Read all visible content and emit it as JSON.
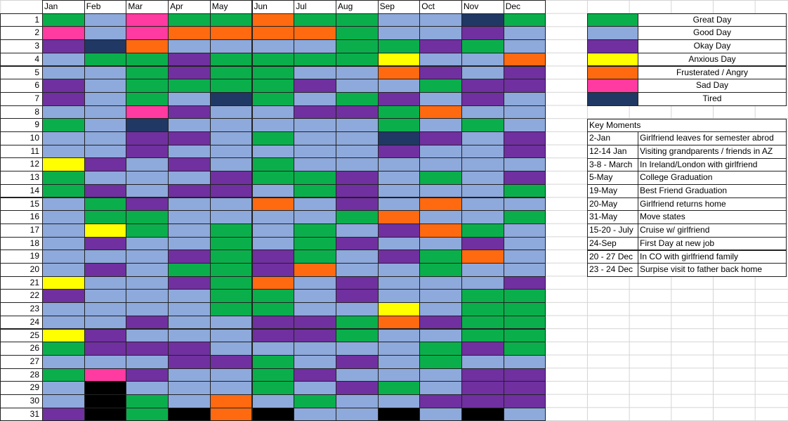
{
  "columns": [
    "Jan",
    "Feb",
    "Mar",
    "Apr",
    "May",
    "Jun",
    "Jul",
    "Aug",
    "Sep",
    "Oct",
    "Nov",
    "Dec"
  ],
  "rows": [
    1,
    2,
    3,
    4,
    5,
    6,
    7,
    8,
    9,
    10,
    11,
    12,
    13,
    14,
    15,
    16,
    17,
    18,
    19,
    20,
    21,
    22,
    23,
    24,
    25,
    26,
    27,
    28,
    29,
    30,
    31
  ],
  "moods": [
    {
      "label": "Great Day",
      "color": "#0aaf4c"
    },
    {
      "label": "Good Day",
      "color": "#8ea9db"
    },
    {
      "label": "Okay Day",
      "color": "#7030a0"
    },
    {
      "label": "Anxious Day",
      "color": "#ffff00"
    },
    {
      "label": "Frusterated / Angry",
      "color": "#ff6a10"
    },
    {
      "label": "Sad Day",
      "color": "#ff3aa0"
    },
    {
      "label": "Tired",
      "color": "#203864"
    }
  ],
  "grid": [
    [
      0,
      1,
      5,
      0,
      0,
      4,
      0,
      0,
      1,
      1,
      6,
      0
    ],
    [
      5,
      1,
      5,
      4,
      4,
      4,
      4,
      0,
      1,
      1,
      2,
      1
    ],
    [
      2,
      6,
      4,
      1,
      1,
      1,
      1,
      0,
      0,
      2,
      0,
      1
    ],
    [
      1,
      0,
      0,
      2,
      0,
      0,
      0,
      0,
      3,
      1,
      1,
      4
    ],
    [
      1,
      1,
      0,
      2,
      0,
      0,
      1,
      1,
      4,
      2,
      1,
      2
    ],
    [
      2,
      1,
      0,
      0,
      0,
      0,
      2,
      1,
      1,
      0,
      2,
      2
    ],
    [
      2,
      1,
      0,
      1,
      6,
      0,
      1,
      0,
      2,
      1,
      2,
      1
    ],
    [
      1,
      1,
      5,
      2,
      1,
      1,
      2,
      2,
      0,
      4,
      1,
      1
    ],
    [
      0,
      1,
      6,
      1,
      1,
      1,
      1,
      1,
      0,
      1,
      0,
      1
    ],
    [
      1,
      1,
      2,
      2,
      1,
      0,
      1,
      1,
      6,
      2,
      1,
      2
    ],
    [
      1,
      1,
      2,
      1,
      1,
      1,
      1,
      1,
      2,
      1,
      1,
      2
    ],
    [
      3,
      2,
      1,
      2,
      1,
      0,
      1,
      1,
      1,
      1,
      1,
      1
    ],
    [
      0,
      1,
      1,
      1,
      2,
      0,
      0,
      2,
      1,
      0,
      1,
      2
    ],
    [
      0,
      2,
      1,
      2,
      2,
      1,
      0,
      2,
      1,
      1,
      1,
      0
    ],
    [
      1,
      0,
      2,
      1,
      1,
      4,
      1,
      2,
      1,
      4,
      1,
      1
    ],
    [
      1,
      0,
      0,
      1,
      1,
      1,
      1,
      0,
      4,
      1,
      1,
      0
    ],
    [
      1,
      3,
      0,
      1,
      0,
      1,
      0,
      1,
      2,
      4,
      0,
      1
    ],
    [
      1,
      2,
      1,
      1,
      0,
      1,
      0,
      2,
      1,
      1,
      2,
      1
    ],
    [
      1,
      1,
      1,
      2,
      0,
      2,
      0,
      1,
      2,
      0,
      4,
      1
    ],
    [
      1,
      2,
      1,
      0,
      0,
      2,
      4,
      1,
      1,
      0,
      1,
      1
    ],
    [
      3,
      1,
      1,
      2,
      0,
      4,
      1,
      2,
      1,
      1,
      1,
      2
    ],
    [
      2,
      1,
      1,
      1,
      0,
      0,
      1,
      2,
      1,
      1,
      0,
      0
    ],
    [
      1,
      1,
      1,
      1,
      0,
      0,
      1,
      1,
      3,
      1,
      0,
      0
    ],
    [
      1,
      1,
      2,
      1,
      1,
      2,
      2,
      0,
      4,
      2,
      0,
      0
    ],
    [
      3,
      2,
      1,
      1,
      1,
      2,
      2,
      0,
      1,
      1,
      0,
      0
    ],
    [
      0,
      2,
      2,
      2,
      1,
      1,
      1,
      1,
      1,
      0,
      2,
      0
    ],
    [
      1,
      1,
      1,
      2,
      2,
      0,
      1,
      2,
      1,
      0,
      1,
      1
    ],
    [
      0,
      5,
      2,
      1,
      1,
      0,
      2,
      1,
      1,
      1,
      2,
      2
    ],
    [
      1,
      null,
      1,
      1,
      1,
      0,
      1,
      2,
      0,
      1,
      2,
      2
    ],
    [
      1,
      null,
      0,
      1,
      4,
      1,
      0,
      1,
      1,
      2,
      2,
      2
    ],
    [
      2,
      null,
      0,
      null,
      4,
      null,
      1,
      1,
      null,
      1,
      null,
      1
    ]
  ],
  "key_moments": {
    "title": "Key Moments",
    "rows": [
      [
        "2-Jan",
        "Girlfriend leaves for semester abrod"
      ],
      [
        "12-14 Jan",
        "Visiting grandparents / friends in AZ"
      ],
      [
        "3-8 - March",
        "In Ireland/London with girlfriend"
      ],
      [
        "5-May",
        "College Graduation"
      ],
      [
        "19-May",
        "Best Friend Graduation"
      ],
      [
        "20-May",
        "Girlfriend returns home"
      ],
      [
        "31-May",
        "Move states"
      ],
      [
        "15-20 - July",
        "Cruise w/ girlfriend"
      ],
      [
        "24-Sep",
        "First Day at new job"
      ],
      [
        "20 - 27 Dec",
        "In CO with girlfriend family"
      ],
      [
        "23 - 24 Dec",
        "Surpise visit to father back home"
      ]
    ]
  }
}
